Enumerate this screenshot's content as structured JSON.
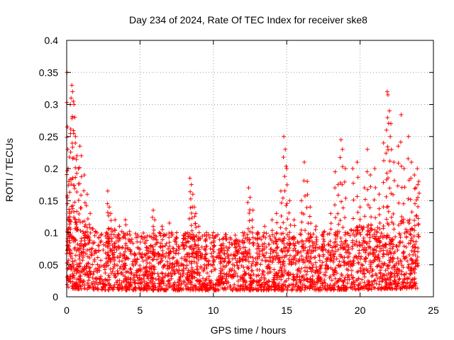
{
  "chart_data": {
    "type": "scatter",
    "title": "Day 234 of 2024, Rate Of TEC Index for receiver ske8",
    "xlabel": "GPS time / hours",
    "ylabel": "ROTI / TECUs",
    "xlim": [
      0,
      25
    ],
    "ylim": [
      0,
      0.4
    ],
    "xticks": [
      0,
      5,
      10,
      15,
      20,
      25
    ],
    "xtick_labels": [
      "0",
      "5",
      "10",
      "15",
      "20",
      "25"
    ],
    "yticks": [
      0,
      0.05,
      0.1,
      0.15,
      0.2,
      0.25,
      0.3,
      0.35,
      0.4
    ],
    "ytick_labels": [
      "0",
      "0.05",
      "0.1",
      "0.15",
      "0.2",
      "0.25",
      "0.3",
      "0.35",
      "0.4"
    ],
    "grid": true,
    "marker": "+",
    "series_color": "#ff0000",
    "series": [
      {
        "name": "ROTI",
        "x_range": [
          0,
          24
        ],
        "typical_range": [
          0.01,
          0.1
        ],
        "points": [
          [
            0.02,
            0.35
          ],
          [
            0.05,
            0.265
          ],
          [
            0.1,
            0.2
          ],
          [
            0.15,
            0.18
          ],
          [
            0.2,
            0.13
          ],
          [
            0.25,
            0.3
          ],
          [
            0.3,
            0.31
          ],
          [
            0.35,
            0.33
          ],
          [
            0.4,
            0.32
          ],
          [
            0.45,
            0.305
          ],
          [
            0.5,
            0.3
          ],
          [
            0.55,
            0.28
          ],
          [
            0.6,
            0.25
          ],
          [
            0.7,
            0.22
          ],
          [
            0.8,
            0.2
          ],
          [
            0.9,
            0.235
          ],
          [
            1.0,
            0.22
          ],
          [
            1.2,
            0.19
          ],
          [
            1.4,
            0.16
          ],
          [
            1.6,
            0.13
          ],
          [
            2.8,
            0.165
          ],
          [
            2.9,
            0.14
          ],
          [
            3.0,
            0.13
          ],
          [
            3.3,
            0.12
          ],
          [
            3.6,
            0.11
          ],
          [
            4.0,
            0.12
          ],
          [
            5.5,
            0.095
          ],
          [
            5.9,
            0.135
          ],
          [
            6.0,
            0.12
          ],
          [
            6.5,
            0.11
          ],
          [
            7.0,
            0.115
          ],
          [
            7.5,
            0.1
          ],
          [
            8.0,
            0.09
          ],
          [
            8.4,
            0.185
          ],
          [
            8.5,
            0.175
          ],
          [
            8.6,
            0.16
          ],
          [
            8.7,
            0.14
          ],
          [
            8.8,
            0.13
          ],
          [
            9.0,
            0.11
          ],
          [
            9.5,
            0.09
          ],
          [
            10.0,
            0.1
          ],
          [
            10.5,
            0.08
          ],
          [
            11.0,
            0.075
          ],
          [
            11.5,
            0.085
          ],
          [
            12.0,
            0.1
          ],
          [
            12.4,
            0.17
          ],
          [
            12.5,
            0.155
          ],
          [
            12.7,
            0.135
          ],
          [
            13.0,
            0.1
          ],
          [
            13.5,
            0.11
          ],
          [
            14.0,
            0.12
          ],
          [
            14.3,
            0.13
          ],
          [
            14.6,
            0.165
          ],
          [
            14.8,
            0.25
          ],
          [
            14.9,
            0.23
          ],
          [
            15.0,
            0.2
          ],
          [
            15.2,
            0.15
          ],
          [
            15.5,
            0.12
          ],
          [
            16.0,
            0.15
          ],
          [
            16.2,
            0.21
          ],
          [
            16.4,
            0.18
          ],
          [
            16.6,
            0.14
          ],
          [
            17.0,
            0.11
          ],
          [
            17.5,
            0.09
          ],
          [
            18.0,
            0.13
          ],
          [
            18.3,
            0.195
          ],
          [
            18.5,
            0.175
          ],
          [
            18.7,
            0.245
          ],
          [
            18.8,
            0.23
          ],
          [
            19.0,
            0.2
          ],
          [
            19.5,
            0.2
          ],
          [
            19.8,
            0.21
          ],
          [
            20.0,
            0.14
          ],
          [
            20.3,
            0.17
          ],
          [
            20.5,
            0.23
          ],
          [
            20.7,
            0.19
          ],
          [
            21.0,
            0.2
          ],
          [
            21.3,
            0.16
          ],
          [
            21.6,
            0.24
          ],
          [
            21.8,
            0.26
          ],
          [
            21.85,
            0.32
          ],
          [
            21.9,
            0.315
          ],
          [
            22.0,
            0.29
          ],
          [
            22.1,
            0.27
          ],
          [
            22.3,
            0.21
          ],
          [
            22.6,
            0.235
          ],
          [
            22.8,
            0.284
          ],
          [
            23.0,
            0.2
          ],
          [
            23.3,
            0.25
          ],
          [
            23.5,
            0.21
          ],
          [
            23.7,
            0.19
          ],
          [
            23.8,
            0.17
          ],
          [
            23.9,
            0.2
          ],
          [
            24.0,
            0.18
          ]
        ]
      }
    ]
  }
}
